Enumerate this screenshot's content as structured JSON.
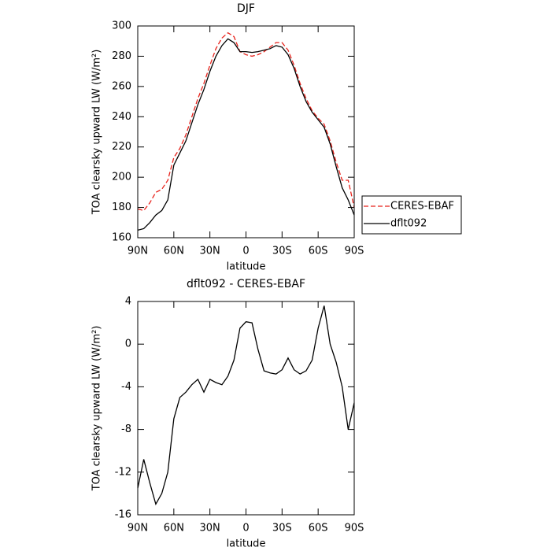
{
  "chart_data": [
    {
      "type": "line",
      "title": "DJF",
      "xlabel": "latitude",
      "ylabel": "TOA clearsky upward LW (W/m²)",
      "x": [
        90,
        85,
        80,
        75,
        70,
        65,
        60,
        55,
        50,
        45,
        40,
        35,
        30,
        25,
        20,
        15,
        10,
        5,
        0,
        -5,
        -10,
        -15,
        -20,
        -25,
        -30,
        -35,
        -40,
        -45,
        -50,
        -55,
        -60,
        -65,
        -70,
        -75,
        -80,
        -85,
        -90
      ],
      "series": [
        {
          "name": "CERES-EBAF",
          "color": "#e8221b",
          "dash": true,
          "values": [
            179,
            178,
            183,
            190,
            192,
            198,
            213,
            219,
            228,
            240,
            252,
            262,
            274,
            285,
            292,
            295.5,
            293,
            283,
            281,
            280,
            281,
            283,
            286,
            289,
            289,
            284,
            274,
            262,
            252,
            244,
            239,
            235,
            224,
            210,
            198,
            198,
            180
          ]
        },
        {
          "name": "dflt092",
          "color": "#000000",
          "dash": false,
          "values": [
            165,
            166,
            170,
            175,
            178,
            185,
            208,
            216,
            224,
            236,
            248,
            258,
            270,
            280,
            287,
            291.5,
            289,
            283,
            283,
            282.5,
            283,
            284,
            285,
            287,
            286,
            281,
            272,
            260,
            250,
            243,
            238,
            233,
            222,
            207,
            193,
            185,
            175
          ]
        }
      ],
      "xlim": [
        90,
        -90
      ],
      "xticks": [
        {
          "value": 90,
          "label": "90N"
        },
        {
          "value": 60,
          "label": "60N"
        },
        {
          "value": 30,
          "label": "30N"
        },
        0,
        {
          "value": -30,
          "label": "30S"
        },
        {
          "value": -60,
          "label": "60S"
        },
        {
          "value": -90,
          "label": "90S"
        }
      ],
      "ylim": [
        160,
        300
      ],
      "yticks": [
        160,
        180,
        200,
        220,
        240,
        260,
        280,
        300
      ],
      "legend": "right"
    },
    {
      "type": "line",
      "title": "dflt092 - CERES-EBAF",
      "xlabel": "latitude",
      "ylabel": "TOA clearsky upward LW (W/m²)",
      "x": [
        90,
        85,
        80,
        75,
        70,
        65,
        60,
        55,
        50,
        45,
        40,
        35,
        30,
        25,
        20,
        15,
        10,
        5,
        0,
        -5,
        -10,
        -15,
        -20,
        -25,
        -30,
        -35,
        -40,
        -45,
        -50,
        -55,
        -60,
        -65,
        -70,
        -75,
        -80,
        -85,
        -90
      ],
      "series": [
        {
          "color": "#000000",
          "dash": false,
          "values": [
            -13.5,
            -10.8,
            -13,
            -15,
            -14,
            -12,
            -7,
            -5,
            -4.5,
            -3.8,
            -3.3,
            -4.5,
            -3.3,
            -3.6,
            -3.8,
            -3,
            -1.5,
            1.5,
            2.1,
            2,
            -0.5,
            -2.5,
            -2.7,
            -2.8,
            -2.4,
            -1.3,
            -2.4,
            -2.8,
            -2.5,
            -1.5,
            1.5,
            3.6,
            0,
            -1.7,
            -4,
            -8,
            -5.5
          ]
        }
      ],
      "xlim": [
        90,
        -90
      ],
      "xticks": [
        {
          "value": 90,
          "label": "90N"
        },
        {
          "value": 60,
          "label": "60N"
        },
        {
          "value": 30,
          "label": "30N"
        },
        0,
        {
          "value": -30,
          "label": "30S"
        },
        {
          "value": -60,
          "label": "60S"
        },
        {
          "value": -90,
          "label": "90S"
        }
      ],
      "ylim": [
        -16,
        4
      ],
      "yticks": [
        -16,
        -12,
        -8,
        -4,
        0,
        4
      ]
    }
  ]
}
